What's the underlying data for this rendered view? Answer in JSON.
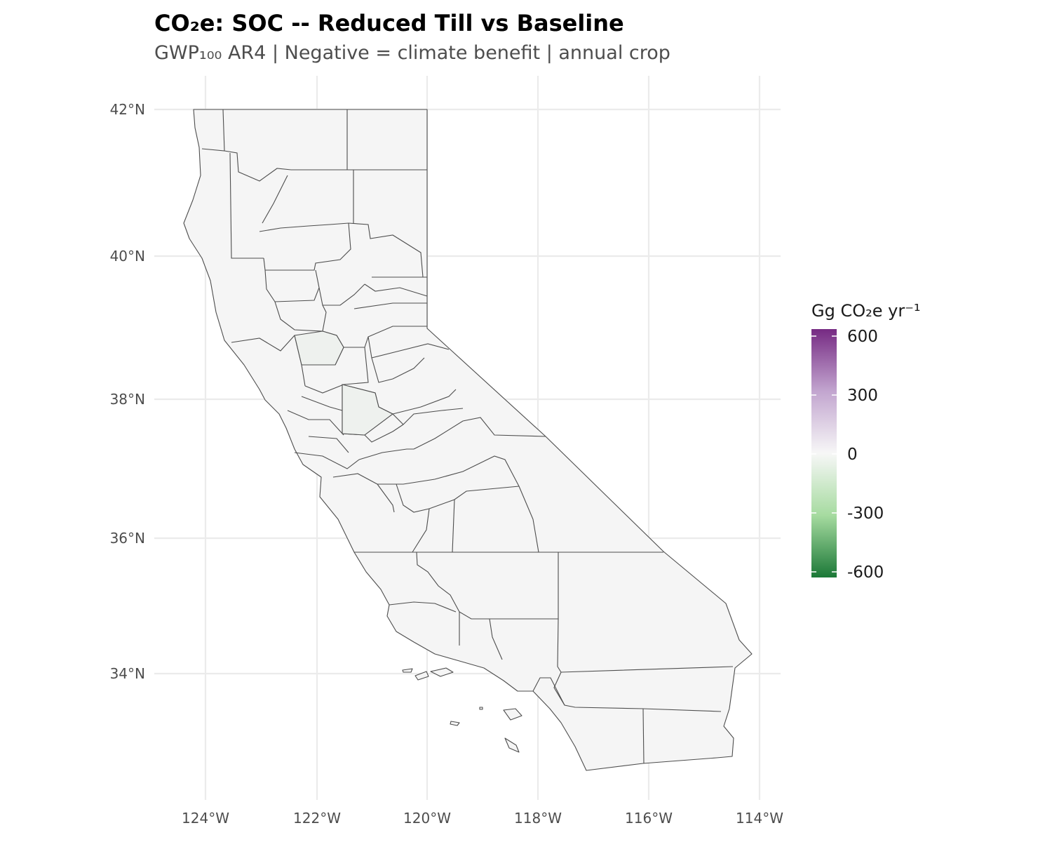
{
  "title": "CO₂e: SOC -- Reduced Till vs Baseline",
  "subtitle": "GWP₁₀₀ AR4 | Negative = climate benefit | annual crop",
  "map": {
    "region": "California counties",
    "fill_color_default": "#f5f5f5",
    "border_color": "#4d4d4d",
    "lon_ticks": [
      "124°W",
      "122°W",
      "120°W",
      "118°W",
      "116°W",
      "114°W"
    ],
    "lat_ticks": [
      "42°N",
      "40°N",
      "38°N",
      "36°N",
      "34°N"
    ]
  },
  "legend": {
    "title": "Gg CO₂e yr⁻¹",
    "labels": [
      "600",
      "300",
      "0",
      "-300",
      "-600"
    ],
    "range": [
      -600,
      600
    ],
    "colors": {
      "high": "#762a83",
      "mid": "#f7f7f7",
      "low": "#1b7837"
    }
  }
}
